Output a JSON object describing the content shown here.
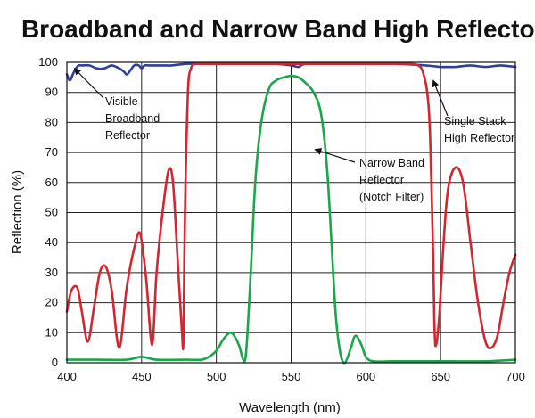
{
  "chart_data": {
    "type": "line",
    "title": "Broadband and Narrow Band High Reflectors",
    "xlabel": "Wavelength (nm)",
    "ylabel": "Reflection (%)",
    "xlim": [
      400,
      700
    ],
    "ylim": [
      0,
      100
    ],
    "x_ticks": [
      "400",
      "450",
      "500",
      "550",
      "600",
      "650",
      "700"
    ],
    "y_ticks": [
      "0",
      "10",
      "20",
      "30",
      "40",
      "50",
      "60",
      "70",
      "80",
      "90",
      "100"
    ],
    "grid": true,
    "colors": {
      "broadband": "#2f3f9a",
      "single_stack": "#d42630",
      "narrow_band": "#1aa64a"
    },
    "series": [
      {
        "key": "broadband",
        "x": [
          400,
          402,
          404,
          406,
          408,
          410,
          415,
          420,
          425,
          430,
          435,
          438,
          440,
          442,
          445,
          448,
          450,
          452,
          455,
          460,
          465,
          470,
          480,
          490,
          500,
          520,
          540,
          550,
          555,
          560,
          580,
          600,
          620,
          640,
          650,
          655,
          660,
          670,
          680,
          690,
          700
        ],
        "y": [
          96,
          94,
          96,
          98,
          99,
          99,
          99,
          98,
          98,
          99,
          98,
          97,
          96,
          97,
          99,
          99,
          98,
          99,
          99,
          99,
          99,
          99,
          99.5,
          99.5,
          99.5,
          99.5,
          99.5,
          99,
          98.5,
          99.5,
          99.5,
          99.5,
          99.5,
          99,
          98.5,
          98.5,
          98.5,
          99,
          98.5,
          99,
          98.5
        ]
      },
      {
        "key": "single_stack",
        "x": [
          400,
          403,
          407,
          410,
          414,
          418,
          422,
          426,
          430,
          435,
          440,
          445,
          449,
          453,
          457,
          460,
          464,
          468,
          471,
          474,
          477,
          478,
          479,
          481,
          483,
          486,
          490,
          500,
          520,
          540,
          560,
          580,
          600,
          620,
          630,
          635,
          638,
          641,
          643,
          645,
          646,
          647,
          649,
          652,
          655,
          660,
          665,
          670,
          675,
          680,
          684,
          688,
          692,
          696,
          700
        ],
        "y": [
          17,
          24,
          25,
          17,
          7,
          18,
          30,
          32,
          24,
          5,
          25,
          38,
          43,
          28,
          6,
          30,
          50,
          64,
          60,
          35,
          10,
          8,
          50,
          90,
          98,
          99.5,
          99.5,
          99.5,
          99.5,
          99.5,
          99.5,
          99.5,
          99.5,
          99.5,
          99.5,
          99,
          97,
          90,
          75,
          35,
          10,
          6,
          15,
          40,
          58,
          65,
          60,
          40,
          20,
          7,
          5,
          9,
          20,
          30,
          36
        ]
      },
      {
        "key": "narrow_band",
        "x": [
          400,
          420,
          440,
          450,
          460,
          480,
          490,
          495,
          500,
          505,
          510,
          515,
          518,
          520,
          523,
          526,
          530,
          535,
          540,
          545,
          550,
          555,
          560,
          565,
          570,
          574,
          577,
          580,
          583,
          586,
          590,
          593,
          597,
          600,
          605,
          620,
          650,
          680,
          700
        ],
        "y": [
          1,
          1,
          1,
          2,
          1,
          1,
          1,
          2,
          4,
          8,
          10,
          6,
          1,
          4,
          30,
          60,
          80,
          91,
          94,
          95,
          95.5,
          95,
          93,
          90,
          83,
          65,
          40,
          15,
          3,
          0,
          5,
          9,
          6,
          2,
          0.5,
          0.5,
          0.5,
          0.5,
          1
        ]
      }
    ],
    "annotations": [
      {
        "lines": [
          "Visible",
          "Broadband",
          "Reflector"
        ],
        "x": 405,
        "y": 98
      },
      {
        "lines": [
          "Single Stack",
          "High Reflector"
        ],
        "x": 645,
        "y": 94
      },
      {
        "lines": [
          "Narrow Band",
          "Reflector",
          "(Notch Filter)"
        ],
        "x": 566,
        "y": 71
      }
    ]
  }
}
